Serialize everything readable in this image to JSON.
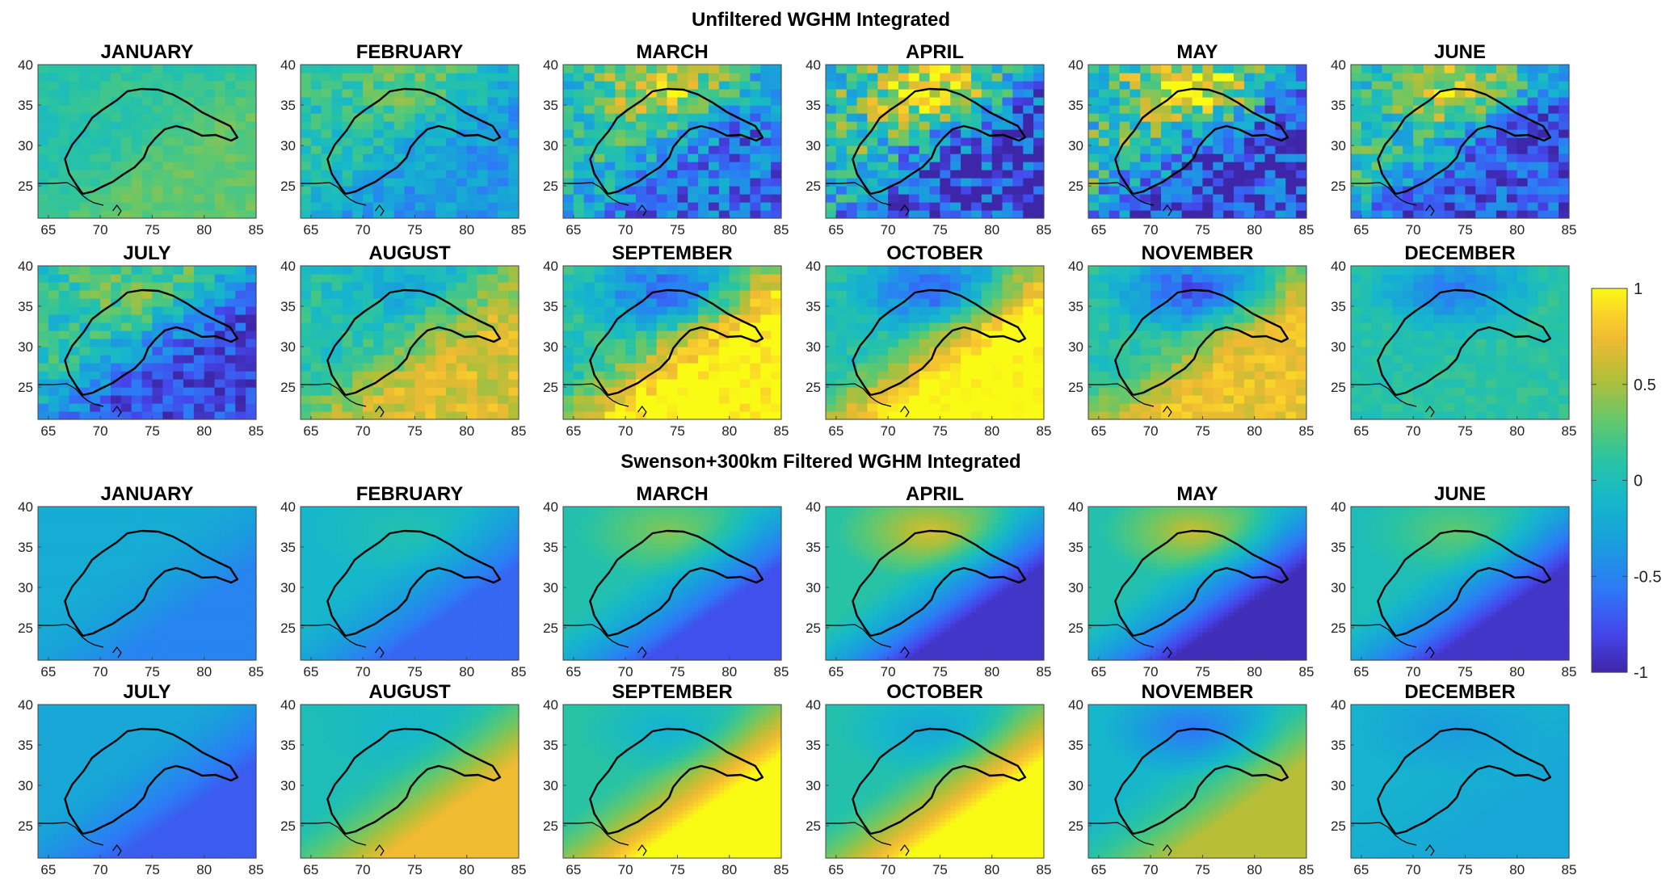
{
  "chart_data": {
    "type": "heatmap",
    "sections": [
      {
        "title": "Unfiltered WGHM Integrated",
        "kind": "unfiltered",
        "panels": [
          {
            "title": "JANUARY",
            "amp": 0.1,
            "se_amp": 0.25,
            "nw_amp": 0.1
          },
          {
            "title": "FEBRUARY",
            "amp": 0.25,
            "se_amp": -0.4,
            "nw_amp": 0.25
          },
          {
            "title": "MARCH",
            "amp": 0.45,
            "se_amp": -0.6,
            "nw_amp": 0.6
          },
          {
            "title": "APRIL",
            "amp": 0.6,
            "se_amp": -0.85,
            "nw_amp": 0.8
          },
          {
            "title": "MAY",
            "amp": 0.6,
            "se_amp": -0.9,
            "nw_amp": 0.8
          },
          {
            "title": "JUNE",
            "amp": 0.45,
            "se_amp": -0.8,
            "nw_amp": 0.6
          },
          {
            "title": "JULY",
            "amp": 0.3,
            "se_amp": -0.85,
            "nw_amp": 0.3
          },
          {
            "title": "AUGUST",
            "amp": 0.2,
            "se_amp": 0.6,
            "nw_amp": -0.2
          },
          {
            "title": "SEPTEMBER",
            "amp": 0.2,
            "se_amp": 1.0,
            "nw_amp": -0.7
          },
          {
            "title": "OCTOBER",
            "amp": 0.15,
            "se_amp": 1.0,
            "nw_amp": -0.7
          },
          {
            "title": "NOVEMBER",
            "amp": 0.15,
            "se_amp": 0.7,
            "nw_amp": -0.8
          },
          {
            "title": "DECEMBER",
            "amp": 0.1,
            "se_amp": 0.05,
            "nw_amp": -0.6
          }
        ]
      },
      {
        "title": "Swenson+300km Filtered WGHM Integrated",
        "kind": "filtered",
        "panels": [
          {
            "title": "JANUARY",
            "base": -0.2,
            "se_amp": -0.3,
            "nw_amp": 0.0
          },
          {
            "title": "FEBRUARY",
            "base": -0.1,
            "se_amp": -0.55,
            "nw_amp": 0.15
          },
          {
            "title": "MARCH",
            "base": 0.05,
            "se_amp": -0.8,
            "nw_amp": 0.35
          },
          {
            "title": "APRIL",
            "base": 0.1,
            "se_amp": -1.0,
            "nw_amp": 0.55
          },
          {
            "title": "MAY",
            "base": 0.05,
            "se_amp": -1.0,
            "nw_amp": 0.55
          },
          {
            "title": "JUNE",
            "base": 0.0,
            "se_amp": -0.9,
            "nw_amp": 0.3
          },
          {
            "title": "JULY",
            "base": -0.25,
            "se_amp": -0.45,
            "nw_amp": 0.0
          },
          {
            "title": "AUGUST",
            "base": 0.0,
            "se_amp": 0.75,
            "nw_amp": -0.1
          },
          {
            "title": "SEPTEMBER",
            "base": 0.1,
            "se_amp": 1.0,
            "nw_amp": -0.25
          },
          {
            "title": "OCTOBER",
            "base": 0.05,
            "se_amp": 1.0,
            "nw_amp": -0.3
          },
          {
            "title": "NOVEMBER",
            "base": -0.1,
            "se_amp": 0.65,
            "nw_amp": -0.5
          },
          {
            "title": "DECEMBER",
            "base": -0.15,
            "se_amp": -0.1,
            "nw_amp": -0.2
          }
        ]
      }
    ],
    "x_ticks": [
      "65",
      "70",
      "75",
      "80",
      "85"
    ],
    "y_ticks": [
      "40",
      "35",
      "30",
      "25"
    ],
    "xlim": [
      64,
      85
    ],
    "ylim": [
      21,
      40
    ],
    "colorbar": {
      "ticks": [
        "1",
        "0.5",
        "0",
        "-0.5",
        "-1"
      ],
      "range": [
        -1,
        1
      ],
      "colormap": "parula"
    },
    "grid": false
  }
}
